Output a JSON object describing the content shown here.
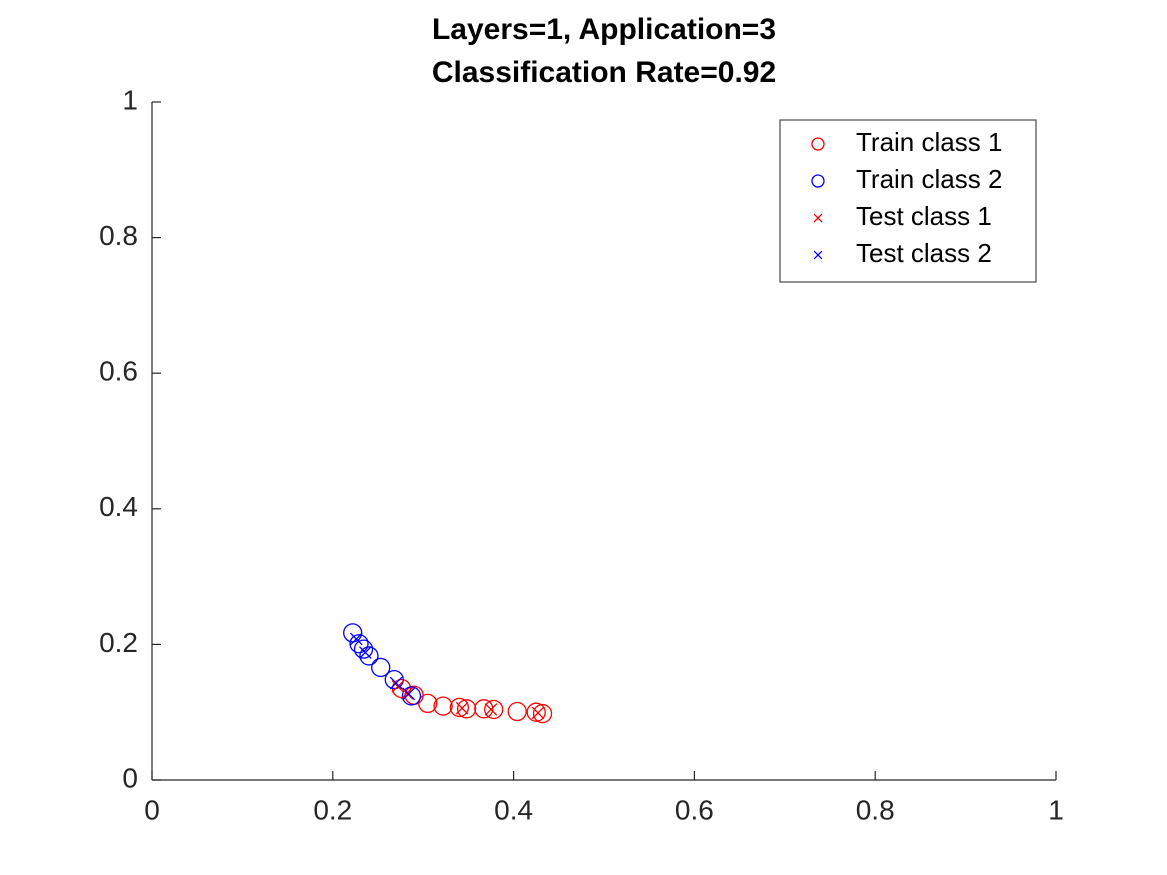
{
  "chart_data": {
    "type": "scatter",
    "title": [
      "Layers=1, Application=3",
      "Classification Rate=0.92"
    ],
    "xlim": [
      0,
      1
    ],
    "ylim": [
      0,
      1
    ],
    "xticks": [
      0,
      0.2,
      0.4,
      0.6,
      0.8,
      1
    ],
    "yticks": [
      0,
      0.2,
      0.4,
      0.6,
      0.8,
      1
    ],
    "grid": false,
    "legend": "northeast",
    "series": [
      {
        "name": "Train class 1",
        "color": "#ff0000",
        "marker": "o",
        "x": [
          0.276,
          0.29,
          0.305,
          0.322,
          0.34,
          0.348,
          0.367,
          0.378,
          0.404,
          0.425,
          0.432
        ],
        "y": [
          0.135,
          0.125,
          0.113,
          0.109,
          0.107,
          0.105,
          0.105,
          0.104,
          0.101,
          0.1,
          0.098
        ]
      },
      {
        "name": "Train class 2",
        "color": "#0000ff",
        "marker": "o",
        "x": [
          0.222,
          0.229,
          0.234,
          0.24,
          0.253,
          0.268,
          0.287
        ],
        "y": [
          0.217,
          0.201,
          0.193,
          0.183,
          0.166,
          0.148,
          0.124
        ]
      },
      {
        "name": "Test class 1",
        "color": "#ff0000",
        "marker": "x",
        "x": [
          0.272,
          0.282,
          0.343,
          0.375,
          0.427
        ],
        "y": [
          0.138,
          0.128,
          0.106,
          0.104,
          0.099
        ]
      },
      {
        "name": "Test class 2",
        "color": "#0000ff",
        "marker": "x",
        "x": [
          0.226,
          0.236,
          0.27,
          0.284
        ],
        "y": [
          0.208,
          0.188,
          0.143,
          0.127
        ]
      }
    ]
  }
}
